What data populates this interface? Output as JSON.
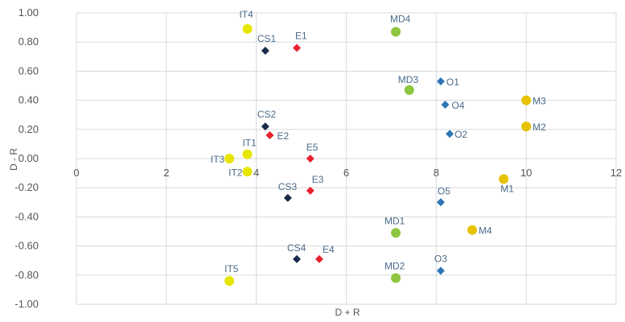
{
  "chart_data": {
    "type": "scatter",
    "title": "",
    "xlabel": "D + R",
    "ylabel": "D - R",
    "xlim": [
      0,
      12
    ],
    "ylim": [
      -1.0,
      1.0
    ],
    "x_ticks": [
      "0",
      "2",
      "4",
      "6",
      "8",
      "10",
      "12"
    ],
    "y_ticks": [
      "1.00",
      "0.80",
      "0.60",
      "0.40",
      "0.20",
      "0.00",
      "-0.20",
      "-0.40",
      "-0.60",
      "-0.80",
      "-1.00"
    ],
    "grid": true,
    "points": [
      {
        "label": "IT4",
        "x": 3.8,
        "y": 0.89,
        "color": "#e6e600",
        "marker": "circle"
      },
      {
        "label": "MD4",
        "x": 7.1,
        "y": 0.87,
        "color": "#8dc63f",
        "marker": "circle"
      },
      {
        "label": "CS1",
        "x": 4.2,
        "y": 0.74,
        "color": "#1a2a4a",
        "marker": "diamond"
      },
      {
        "label": "E1",
        "x": 4.9,
        "y": 0.76,
        "color": "#e8222d",
        "marker": "diamond"
      },
      {
        "label": "O1",
        "x": 8.1,
        "y": 0.53,
        "color": "#2e75b6",
        "marker": "diamond"
      },
      {
        "label": "MD3",
        "x": 7.4,
        "y": 0.47,
        "color": "#8dc63f",
        "marker": "circle"
      },
      {
        "label": "M3",
        "x": 10.0,
        "y": 0.4,
        "color": "#e6c200",
        "marker": "circle"
      },
      {
        "label": "O4",
        "x": 8.2,
        "y": 0.37,
        "color": "#2e75b6",
        "marker": "diamond"
      },
      {
        "label": "M2",
        "x": 10.0,
        "y": 0.22,
        "color": "#e6c200",
        "marker": "circle"
      },
      {
        "label": "CS2",
        "x": 4.2,
        "y": 0.22,
        "color": "#1a2a4a",
        "marker": "diamond"
      },
      {
        "label": "O2",
        "x": 8.3,
        "y": 0.17,
        "color": "#2e75b6",
        "marker": "diamond"
      },
      {
        "label": "E2",
        "x": 4.3,
        "y": 0.16,
        "color": "#e8222d",
        "marker": "diamond"
      },
      {
        "label": "IT1",
        "x": 3.8,
        "y": 0.03,
        "color": "#e6e600",
        "marker": "circle"
      },
      {
        "label": "E5",
        "x": 5.2,
        "y": 0.0,
        "color": "#e8222d",
        "marker": "diamond"
      },
      {
        "label": "IT3",
        "x": 3.4,
        "y": 0.0,
        "color": "#e6e600",
        "marker": "circle"
      },
      {
        "label": "IT2",
        "x": 3.8,
        "y": -0.09,
        "color": "#e6e600",
        "marker": "circle"
      },
      {
        "label": "M1",
        "x": 9.5,
        "y": -0.14,
        "color": "#e6c200",
        "marker": "circle"
      },
      {
        "label": "E3",
        "x": 5.2,
        "y": -0.22,
        "color": "#e8222d",
        "marker": "diamond"
      },
      {
        "label": "CS3",
        "x": 4.7,
        "y": -0.27,
        "color": "#1a2a4a",
        "marker": "diamond"
      },
      {
        "label": "O5",
        "x": 8.1,
        "y": -0.3,
        "color": "#2e75b6",
        "marker": "diamond"
      },
      {
        "label": "MD1",
        "x": 7.1,
        "y": -0.51,
        "color": "#8dc63f",
        "marker": "circle"
      },
      {
        "label": "M4",
        "x": 8.8,
        "y": -0.49,
        "color": "#e6c200",
        "marker": "circle"
      },
      {
        "label": "CS4",
        "x": 4.9,
        "y": -0.69,
        "color": "#1a2a4a",
        "marker": "diamond"
      },
      {
        "label": "E4",
        "x": 5.4,
        "y": -0.69,
        "color": "#e8222d",
        "marker": "diamond"
      },
      {
        "label": "MD2",
        "x": 7.1,
        "y": -0.82,
        "color": "#8dc63f",
        "marker": "circle"
      },
      {
        "label": "O3",
        "x": 8.1,
        "y": -0.77,
        "color": "#2e75b6",
        "marker": "diamond"
      },
      {
        "label": "IT5",
        "x": 3.4,
        "y": -0.84,
        "color": "#e6e600",
        "marker": "circle"
      }
    ]
  }
}
